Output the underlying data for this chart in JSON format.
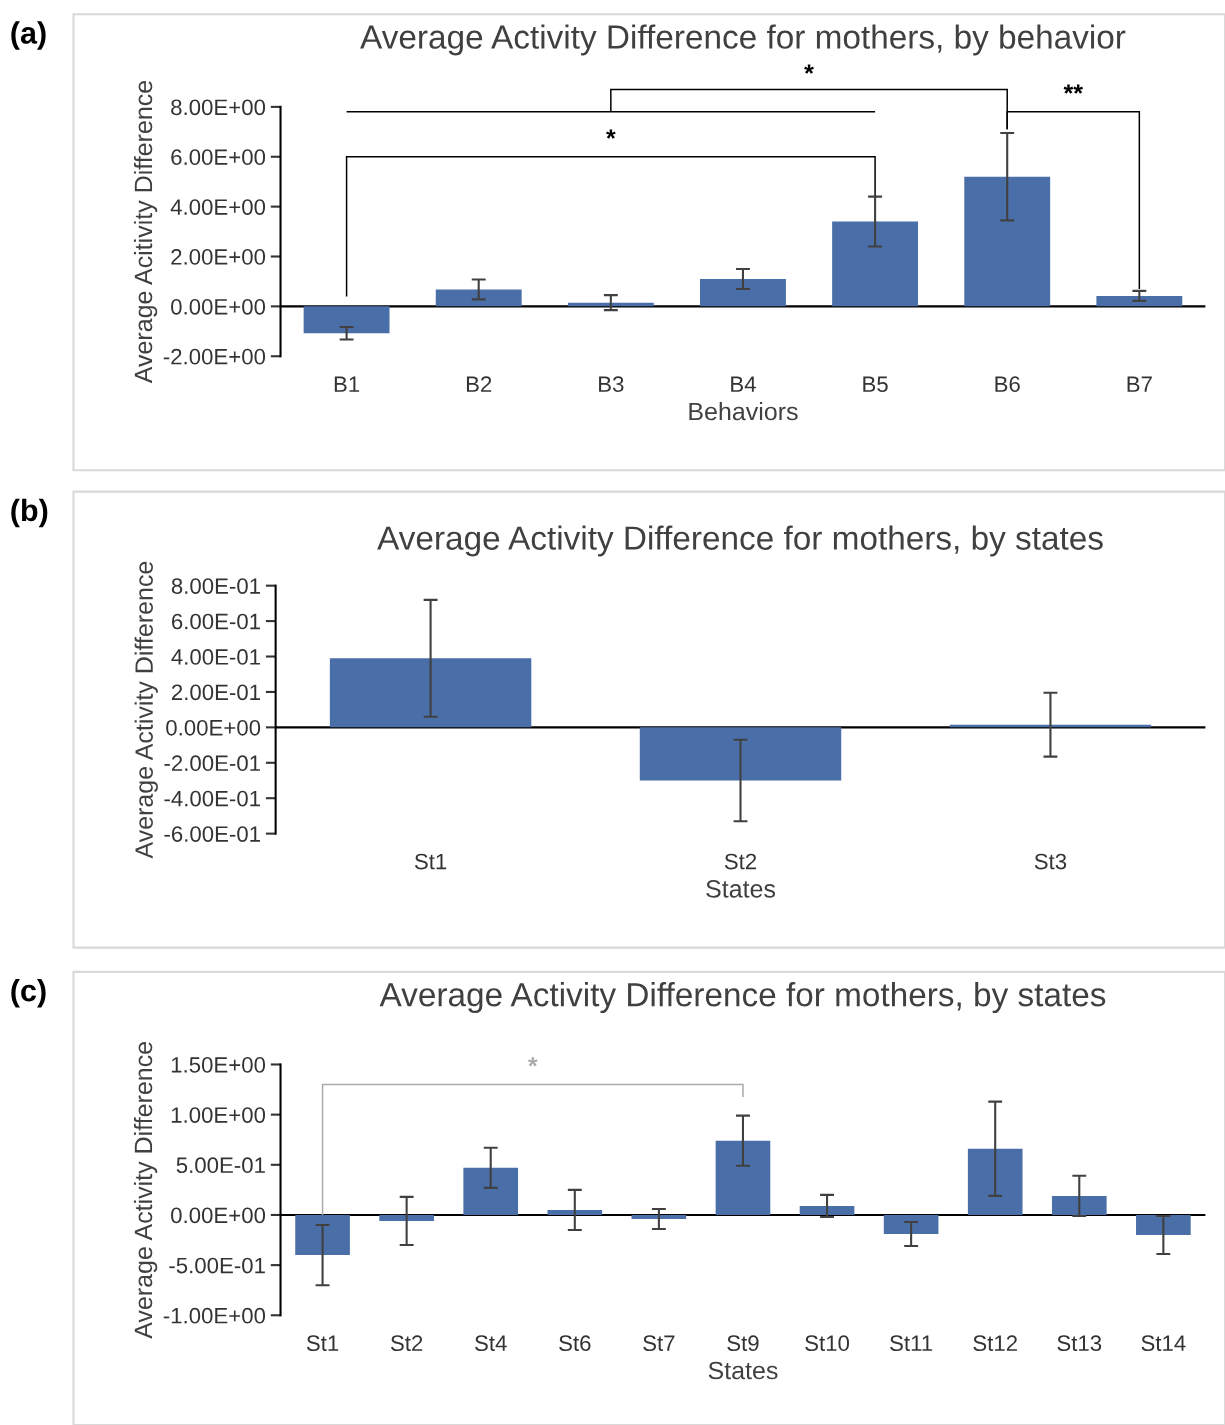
{
  "chart_data": [
    {
      "type": "bar",
      "title": "Average Activity Difference for mothers, by behavior",
      "xlabel": "Behaviors",
      "ylabel": "Average Acitivity Difference",
      "color": "#4a6ea8",
      "categories": [
        "B1",
        "B2",
        "B3",
        "B4",
        "B5",
        "B6",
        "B7"
      ],
      "values": [
        -1.08,
        0.68,
        0.15,
        1.1,
        3.4,
        5.2,
        0.42
      ],
      "errors": [
        0.25,
        0.4,
        0.3,
        0.4,
        1.0,
        1.75,
        0.2
      ],
      "ylim": [
        -2,
        8
      ],
      "yticks": [
        {
          "value": -2,
          "label": "-2.00E+00"
        },
        {
          "value": 0,
          "label": "0.00E+00"
        },
        {
          "value": 2,
          "label": "2.00E+00"
        },
        {
          "value": 4,
          "label": "4.00E+00"
        },
        {
          "value": 6,
          "label": "6.00E+00"
        },
        {
          "value": 8,
          "label": "8.00E+00"
        }
      ],
      "grid": false,
      "ref_lines": [
        {
          "axis": "y",
          "value": 0,
          "color": "#000000"
        }
      ],
      "annotations": [
        "(a)",
        "*",
        "**",
        "*"
      ]
    },
    {
      "type": "bar",
      "title": "Average Activity Difference for mothers, by states",
      "xlabel": "States",
      "ylabel": "Average Activity Difference",
      "color": "#4a6ea8",
      "categories": [
        "St1",
        "St2",
        "St3"
      ],
      "values": [
        0.39,
        -0.3,
        0.015
      ],
      "errors": [
        0.33,
        0.23,
        0.18
      ],
      "ylim": [
        -0.6,
        0.8
      ],
      "yticks": [
        {
          "value": -0.6,
          "label": "-6.00E-01"
        },
        {
          "value": -0.4,
          "label": "-4.00E-01"
        },
        {
          "value": -0.2,
          "label": "-2.00E-01"
        },
        {
          "value": 0,
          "label": "0.00E+00"
        },
        {
          "value": 0.2,
          "label": "2.00E-01"
        },
        {
          "value": 0.4,
          "label": "4.00E-01"
        },
        {
          "value": 0.6,
          "label": "6.00E-01"
        },
        {
          "value": 0.8,
          "label": "8.00E-01"
        }
      ],
      "grid": false,
      "ref_lines": [
        {
          "axis": "y",
          "value": 0,
          "color": "#000000"
        }
      ],
      "annotations": [
        "(b)"
      ]
    },
    {
      "type": "bar",
      "title": "Average Activity Difference for mothers, by states",
      "xlabel": "States",
      "ylabel": "Average Activity Difference",
      "color": "#4a6ea8",
      "categories": [
        "St1",
        "St2",
        "St4",
        "St6",
        "St7",
        "St9",
        "St10",
        "St11",
        "St12",
        "St13",
        "St14"
      ],
      "values": [
        -0.4,
        -0.06,
        0.47,
        0.05,
        -0.04,
        0.74,
        0.09,
        -0.19,
        0.66,
        0.19,
        -0.2
      ],
      "errors": [
        0.3,
        0.24,
        0.2,
        0.2,
        0.1,
        0.25,
        0.11,
        0.12,
        0.47,
        0.2,
        0.19
      ],
      "ylim": [
        -1,
        1.5
      ],
      "yticks": [
        {
          "value": -1,
          "label": "-1.00E+00"
        },
        {
          "value": -0.5,
          "label": "-5.00E-01"
        },
        {
          "value": 0,
          "label": "0.00E+00"
        },
        {
          "value": 0.5,
          "label": "5.00E-01"
        },
        {
          "value": 1,
          "label": "1.00E+00"
        },
        {
          "value": 1.5,
          "label": "1.50E+00"
        }
      ],
      "grid": false,
      "ref_lines": [
        {
          "axis": "y",
          "value": 0,
          "color": "#000000"
        }
      ],
      "annotations": [
        "(c)",
        "*"
      ]
    }
  ]
}
